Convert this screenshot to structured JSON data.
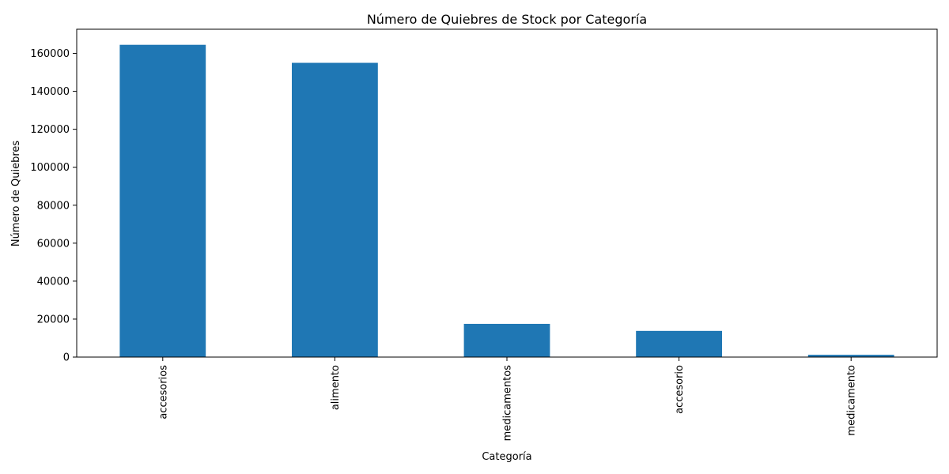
{
  "chart_data": {
    "type": "bar",
    "title": "Número de Quiebres de Stock por Categoría",
    "xlabel": "Categoría",
    "ylabel": "Número de Quiebres",
    "categories": [
      "accesorios",
      "alimento",
      "medicamentos",
      "accesorio",
      "medicamento"
    ],
    "values": [
      164500,
      155000,
      17500,
      13800,
      1200
    ],
    "ylim": [
      0,
      172700
    ],
    "yticks": [
      0,
      20000,
      40000,
      60000,
      80000,
      100000,
      120000,
      140000,
      160000
    ],
    "bar_color": "#1f77b4",
    "grid": false,
    "legend": "none"
  }
}
